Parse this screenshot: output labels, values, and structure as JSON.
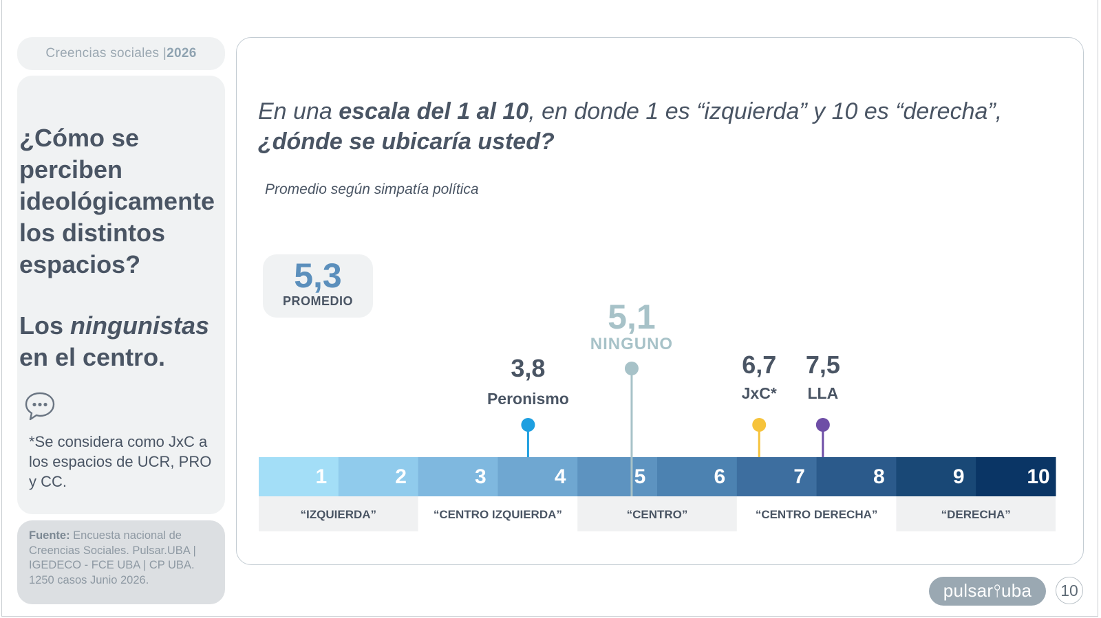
{
  "tag": {
    "label": "Creencias sociales | ",
    "year": "2026"
  },
  "headline": {
    "question": "¿Cómo se perciben ideológicamente los distintos espacios?",
    "answer_pre": "Los ",
    "answer_em": "ningunistas",
    "answer_post": " en el centro."
  },
  "note": "*Se considera como JxC a los espacios de UCR, PRO y CC.",
  "source": {
    "label": "Fuente:",
    "text": " Encuesta nacional de Creencias Sociales. Pulsar.UBA | IGEDECO - FCE UBA | CP UBA. 1250 casos Junio 2026."
  },
  "question": {
    "part1": "En una ",
    "bold": "escala del 1 al 10",
    "part2": ", en donde 1 es “izquierda” y 10 es “derecha”,",
    "line2": "¿dónde se ubicaría usted?"
  },
  "subtitle": "Promedio según simpatía política",
  "average": {
    "value": "5,3",
    "label": "PROMEDIO"
  },
  "chart_data": {
    "type": "scale",
    "scale": [
      "1",
      "2",
      "3",
      "4",
      "5",
      "6",
      "7",
      "8",
      "9",
      "10"
    ],
    "scale_colors": [
      "#a3def7",
      "#90cbec",
      "#7fb8df",
      "#6fa7d1",
      "#5d93c0",
      "#4c82b1",
      "#3d6e9f",
      "#2b5a8b",
      "#194876",
      "#0a3565"
    ],
    "categories": [
      {
        "label": "“IZQUIERDA”",
        "range": [
          1,
          2
        ]
      },
      {
        "label": "“CENTRO IZQUIERDA”",
        "range": [
          3,
          4
        ]
      },
      {
        "label": "“CENTRO”",
        "range": [
          5,
          6
        ]
      },
      {
        "label": "“CENTRO DERECHA”",
        "range": [
          7,
          8
        ]
      },
      {
        "label": "“DERECHA”",
        "range": [
          9,
          10
        ]
      }
    ],
    "series": [
      {
        "name": "Peronismo",
        "value": 3.8,
        "label": "3,8",
        "color": "#1e9fe0"
      },
      {
        "name": "NINGUNO",
        "value": 5.1,
        "label": "5,1",
        "color": "#a7c2c8"
      },
      {
        "name": "JxC*",
        "value": 6.7,
        "label": "6,7",
        "color": "#f6c33b"
      },
      {
        "name": "LLA",
        "value": 7.5,
        "label": "7,5",
        "color": "#6e4ea6"
      }
    ],
    "average": 5.3
  },
  "brand": "pulsar⫯uba",
  "page_number": "10"
}
